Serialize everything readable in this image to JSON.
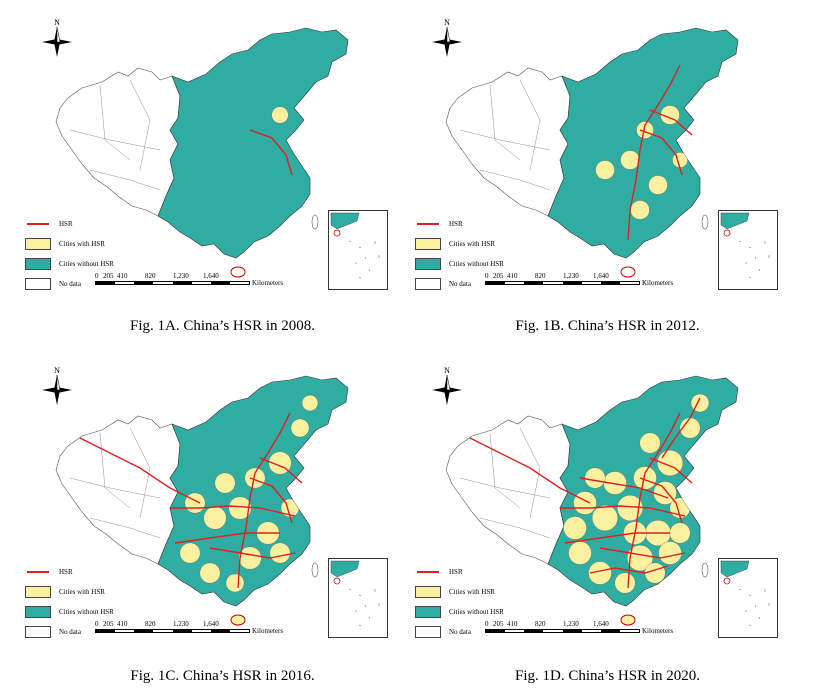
{
  "legend": {
    "hsr": "HSR",
    "with": "Cities with HSR",
    "without": "Cities without HSR",
    "nodata": "No data"
  },
  "scale": {
    "ticks": [
      "0",
      "205",
      "410",
      "820",
      "1,230",
      "1,640"
    ],
    "unit": "Kilometers"
  },
  "north_label": "N",
  "colors": {
    "hsr_line": "#e0201d",
    "with_hsr": "#fbf0a0",
    "without_hsr": "#2fada3",
    "no_data": "#ffffff"
  },
  "panels": [
    {
      "id": "A",
      "caption": "Fig. 1A. China’s HSR in 2008.",
      "hsr_level": 0.05
    },
    {
      "id": "B",
      "caption": "Fig. 1B. China’s HSR in 2012.",
      "hsr_level": 0.25
    },
    {
      "id": "C",
      "caption": "Fig. 1C. China’s HSR in 2016.",
      "hsr_level": 0.55
    },
    {
      "id": "D",
      "caption": "Fig. 1D. China’s HSR in 2020.",
      "hsr_level": 0.8
    }
  ]
}
